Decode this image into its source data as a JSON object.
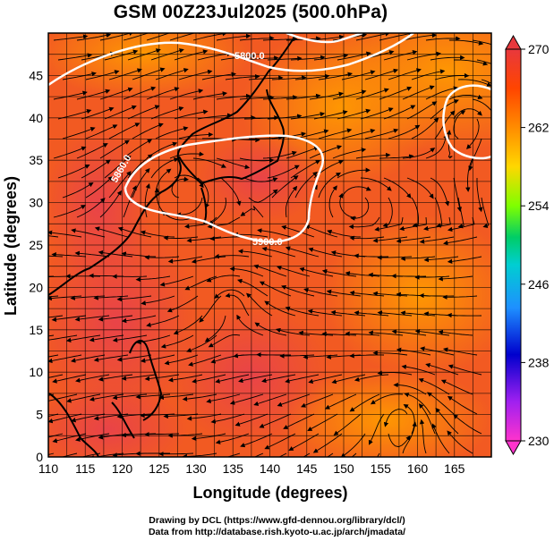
{
  "title": "GSM 00Z23Jul2025 (500.0hPa)",
  "axes": {
    "xlabel": "Longitude (degrees)",
    "ylabel": "Latitude  (degrees)",
    "x_ticks": [
      "110",
      "115",
      "120",
      "125",
      "130",
      "135",
      "140",
      "145",
      "150",
      "155",
      "160",
      "165"
    ],
    "y_ticks": [
      "0",
      "5",
      "10",
      "15",
      "20",
      "25",
      "30",
      "35",
      "40",
      "45"
    ]
  },
  "colorbar": {
    "ticks": [
      "230",
      "238",
      "246",
      "254",
      "262",
      "270"
    ],
    "colors": [
      "#ff33cc",
      "#a020f0",
      "#0000cd",
      "#1e90ff",
      "#00ced1",
      "#00cd66",
      "#7fff00",
      "#ffd700",
      "#ff8c00",
      "#ff4500",
      "#e8383d"
    ]
  },
  "contours": [
    "5800.0",
    "5860.0",
    "5900.0"
  ],
  "credits": {
    "line1": "Drawing by DCL (https://www.gfd-dennou.org/library/dcl/)",
    "line2": "Data from http://database.rish.kyoto-u.ac.jp/arch/jmadata/"
  },
  "chart_data": {
    "type": "heatmap",
    "title": "GSM 00Z23Jul2025 (500.0hPa)",
    "xlabel": "Longitude (degrees)",
    "ylabel": "Latitude  (degrees)",
    "xlim": [
      110,
      170
    ],
    "ylim": [
      0,
      50
    ],
    "colorbar_range": [
      230,
      270
    ],
    "field": "temperature (K), shading",
    "contour_field": "geopotential height (m)",
    "contour_levels": [
      5800,
      5860,
      5900
    ],
    "overlay": "wind streamlines"
  }
}
